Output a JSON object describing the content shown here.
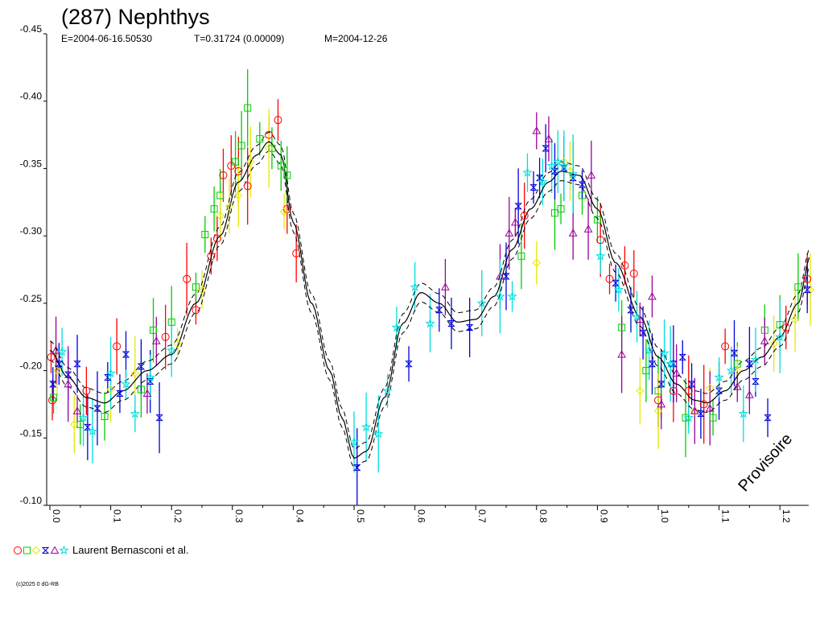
{
  "chart_data": {
    "type": "scatter",
    "title": "(287) Nephthys",
    "subtitle": {
      "epoch": "E=2004-06-16.50530",
      "period": "T=0.31724 (0.00009)",
      "mid_date": "M=2004-12-26"
    },
    "xlabel": "",
    "ylabel": "",
    "xlim": [
      0.0,
      1.25
    ],
    "ylim": [
      -0.45,
      -0.1
    ],
    "x_ticks": [
      "0.0",
      "0.1",
      "0.2",
      "0.3",
      "0.4",
      "0.5",
      "0.6",
      "0.7",
      "0.8",
      "0.9",
      "1.0",
      "1.1",
      "1.2"
    ],
    "y_ticks": [
      "-0.45",
      "-0.40",
      "-0.35",
      "-0.30",
      "-0.25",
      "-0.20",
      "-0.15",
      "-0.10"
    ],
    "fit_curve": {
      "x": [
        0.0,
        0.03,
        0.06,
        0.09,
        0.12,
        0.16,
        0.2,
        0.24,
        0.28,
        0.31,
        0.34,
        0.36,
        0.38,
        0.4,
        0.43,
        0.46,
        0.48,
        0.5,
        0.52,
        0.55,
        0.58,
        0.61,
        0.64,
        0.67,
        0.7,
        0.73,
        0.76,
        0.79,
        0.82,
        0.84,
        0.87,
        0.9,
        0.93,
        0.97,
        1.0,
        1.03,
        1.06,
        1.08,
        1.11,
        1.14,
        1.17,
        1.2,
        1.23,
        1.25
      ],
      "y": [
        -0.215,
        -0.195,
        -0.18,
        -0.176,
        -0.185,
        -0.2,
        -0.212,
        -0.25,
        -0.3,
        -0.34,
        -0.36,
        -0.37,
        -0.36,
        -0.31,
        -0.25,
        -0.2,
        -0.165,
        -0.135,
        -0.14,
        -0.18,
        -0.235,
        -0.258,
        -0.25,
        -0.236,
        -0.238,
        -0.255,
        -0.29,
        -0.32,
        -0.34,
        -0.348,
        -0.345,
        -0.32,
        -0.28,
        -0.24,
        -0.21,
        -0.19,
        -0.178,
        -0.176,
        -0.185,
        -0.2,
        -0.21,
        -0.225,
        -0.25,
        -0.285
      ],
      "band": 0.007
    },
    "series": [
      {
        "marker": "circle",
        "color": "#ff0000",
        "points": [
          [
            0.002,
            -0.21
          ],
          [
            0.004,
            -0.178
          ],
          [
            0.06,
            -0.185
          ],
          [
            0.11,
            -0.218
          ],
          [
            0.19,
            -0.225
          ],
          [
            0.225,
            -0.268
          ],
          [
            0.24,
            -0.245
          ],
          [
            0.265,
            -0.285
          ],
          [
            0.275,
            -0.298
          ],
          [
            0.285,
            -0.345
          ],
          [
            0.298,
            -0.352
          ],
          [
            0.31,
            -0.348
          ],
          [
            0.325,
            -0.337
          ],
          [
            0.36,
            -0.375
          ],
          [
            0.375,
            -0.386
          ],
          [
            0.39,
            -0.32
          ],
          [
            0.405,
            -0.287
          ],
          [
            0.78,
            -0.315
          ],
          [
            0.905,
            -0.297
          ],
          [
            0.92,
            -0.268
          ],
          [
            0.945,
            -0.278
          ],
          [
            0.96,
            -0.272
          ],
          [
            1.0,
            -0.178
          ],
          [
            1.025,
            -0.185
          ],
          [
            1.05,
            -0.185
          ],
          [
            1.075,
            -0.175
          ],
          [
            1.11,
            -0.218
          ],
          [
            1.21,
            -0.232
          ],
          [
            1.245,
            -0.268
          ],
          [
            1.255,
            -0.245
          ]
        ]
      },
      {
        "marker": "square",
        "color": "#00cc00",
        "points": [
          [
            0.006,
            -0.18
          ],
          [
            0.05,
            -0.16
          ],
          [
            0.09,
            -0.166
          ],
          [
            0.15,
            -0.186
          ],
          [
            0.17,
            -0.23
          ],
          [
            0.2,
            -0.236
          ],
          [
            0.24,
            -0.262
          ],
          [
            0.255,
            -0.301
          ],
          [
            0.27,
            -0.32
          ],
          [
            0.28,
            -0.33
          ],
          [
            0.305,
            -0.355
          ],
          [
            0.315,
            -0.367
          ],
          [
            0.325,
            -0.395
          ],
          [
            0.345,
            -0.372
          ],
          [
            0.365,
            -0.365
          ],
          [
            0.38,
            -0.352
          ],
          [
            0.39,
            -0.345
          ],
          [
            0.775,
            -0.285
          ],
          [
            0.83,
            -0.317
          ],
          [
            0.84,
            -0.32
          ],
          [
            0.875,
            -0.33
          ],
          [
            0.9,
            -0.312
          ],
          [
            0.94,
            -0.232
          ],
          [
            0.98,
            -0.2
          ],
          [
            1.0,
            -0.185
          ],
          [
            1.045,
            -0.165
          ],
          [
            1.09,
            -0.165
          ],
          [
            1.13,
            -0.205
          ],
          [
            1.175,
            -0.23
          ],
          [
            1.2,
            -0.234
          ],
          [
            1.23,
            -0.262
          ]
        ]
      },
      {
        "marker": "diamond",
        "color": "#e8e800",
        "points": [
          [
            0.012,
            -0.2
          ],
          [
            0.04,
            -0.16
          ],
          [
            0.1,
            -0.186
          ],
          [
            0.14,
            -0.198
          ],
          [
            0.21,
            -0.22
          ],
          [
            0.25,
            -0.26
          ],
          [
            0.28,
            -0.315
          ],
          [
            0.295,
            -0.322
          ],
          [
            0.31,
            -0.33
          ],
          [
            0.33,
            -0.355
          ],
          [
            0.36,
            -0.365
          ],
          [
            0.385,
            -0.318
          ],
          [
            0.8,
            -0.28
          ],
          [
            0.845,
            -0.355
          ],
          [
            0.855,
            -0.348
          ],
          [
            0.97,
            -0.185
          ],
          [
            1.0,
            -0.17
          ],
          [
            1.06,
            -0.17
          ],
          [
            1.085,
            -0.187
          ],
          [
            1.13,
            -0.2
          ],
          [
            1.19,
            -0.22
          ],
          [
            1.225,
            -0.238
          ],
          [
            1.25,
            -0.26
          ]
        ]
      },
      {
        "marker": "hourglass",
        "color": "#0000dd",
        "points": [
          [
            0.005,
            -0.19
          ],
          [
            0.015,
            -0.205
          ],
          [
            0.03,
            -0.197
          ],
          [
            0.045,
            -0.205
          ],
          [
            0.062,
            -0.158
          ],
          [
            0.078,
            -0.172
          ],
          [
            0.095,
            -0.195
          ],
          [
            0.115,
            -0.183
          ],
          [
            0.125,
            -0.212
          ],
          [
            0.15,
            -0.203
          ],
          [
            0.165,
            -0.192
          ],
          [
            0.18,
            -0.165
          ],
          [
            0.505,
            -0.128
          ],
          [
            0.59,
            -0.205
          ],
          [
            0.64,
            -0.245
          ],
          [
            0.66,
            -0.235
          ],
          [
            0.69,
            -0.232
          ],
          [
            0.75,
            -0.27
          ],
          [
            0.77,
            -0.322
          ],
          [
            0.795,
            -0.336
          ],
          [
            0.805,
            -0.343
          ],
          [
            0.815,
            -0.365
          ],
          [
            0.83,
            -0.348
          ],
          [
            0.845,
            -0.35
          ],
          [
            0.86,
            -0.343
          ],
          [
            0.875,
            -0.338
          ],
          [
            0.93,
            -0.265
          ],
          [
            0.955,
            -0.245
          ],
          [
            0.975,
            -0.228
          ],
          [
            0.99,
            -0.205
          ],
          [
            1.005,
            -0.19
          ],
          [
            1.025,
            -0.205
          ],
          [
            1.04,
            -0.21
          ],
          [
            1.055,
            -0.19
          ],
          [
            1.07,
            -0.168
          ],
          [
            1.1,
            -0.185
          ],
          [
            1.125,
            -0.213
          ],
          [
            1.15,
            -0.205
          ],
          [
            1.16,
            -0.192
          ],
          [
            1.18,
            -0.165
          ],
          [
            1.245,
            -0.26
          ]
        ]
      },
      {
        "marker": "triangle",
        "color": "#990099",
        "points": [
          [
            0.01,
            -0.215
          ],
          [
            0.03,
            -0.19
          ],
          [
            0.045,
            -0.17
          ],
          [
            0.16,
            -0.183
          ],
          [
            0.175,
            -0.222
          ],
          [
            0.65,
            -0.262
          ],
          [
            0.74,
            -0.27
          ],
          [
            0.755,
            -0.302
          ],
          [
            0.765,
            -0.31
          ],
          [
            0.8,
            -0.378
          ],
          [
            0.82,
            -0.372
          ],
          [
            0.86,
            -0.302
          ],
          [
            0.885,
            -0.305
          ],
          [
            0.89,
            -0.345
          ],
          [
            0.94,
            -0.212
          ],
          [
            0.97,
            -0.238
          ],
          [
            0.99,
            -0.255
          ],
          [
            1.005,
            -0.175
          ],
          [
            1.03,
            -0.198
          ],
          [
            1.06,
            -0.17
          ],
          [
            1.085,
            -0.172
          ],
          [
            1.13,
            -0.188
          ],
          [
            1.15,
            -0.182
          ],
          [
            1.175,
            -0.222
          ]
        ]
      },
      {
        "marker": "star",
        "color": "#00dddd",
        "points": [
          [
            0.02,
            -0.214
          ],
          [
            0.055,
            -0.165
          ],
          [
            0.07,
            -0.155
          ],
          [
            0.1,
            -0.198
          ],
          [
            0.125,
            -0.19
          ],
          [
            0.14,
            -0.168
          ],
          [
            0.165,
            -0.195
          ],
          [
            0.2,
            -0.215
          ],
          [
            0.5,
            -0.147
          ],
          [
            0.52,
            -0.158
          ],
          [
            0.54,
            -0.153
          ],
          [
            0.555,
            -0.185
          ],
          [
            0.57,
            -0.232
          ],
          [
            0.6,
            -0.262
          ],
          [
            0.625,
            -0.235
          ],
          [
            0.71,
            -0.25
          ],
          [
            0.74,
            -0.255
          ],
          [
            0.76,
            -0.255
          ],
          [
            0.785,
            -0.347
          ],
          [
            0.81,
            -0.34
          ],
          [
            0.825,
            -0.352
          ],
          [
            0.835,
            -0.355
          ],
          [
            0.845,
            -0.352
          ],
          [
            0.86,
            -0.346
          ],
          [
            0.905,
            -0.285
          ],
          [
            0.935,
            -0.26
          ],
          [
            0.965,
            -0.24
          ],
          [
            0.985,
            -0.215
          ],
          [
            1.01,
            -0.213
          ],
          [
            1.02,
            -0.205
          ],
          [
            1.05,
            -0.165
          ],
          [
            1.1,
            -0.195
          ],
          [
            1.12,
            -0.2
          ],
          [
            1.14,
            -0.168
          ],
          [
            1.16,
            -0.208
          ],
          [
            1.2,
            -0.225
          ]
        ]
      }
    ],
    "legend": {
      "label": "Laurent Bernasconi et al.",
      "position": "bottom-left",
      "markers": [
        "circle",
        "square",
        "diamond",
        "hourglass",
        "triangle",
        "star"
      ]
    },
    "annotation": "Provisoire",
    "copyright": "(c)2025 0 dG-RB",
    "colors": {
      "circle": "#ff0000",
      "square": "#00cc00",
      "diamond": "#e8e800",
      "hourglass": "#0000dd",
      "triangle": "#990099",
      "star": "#00dddd",
      "fit": "#000000"
    }
  }
}
